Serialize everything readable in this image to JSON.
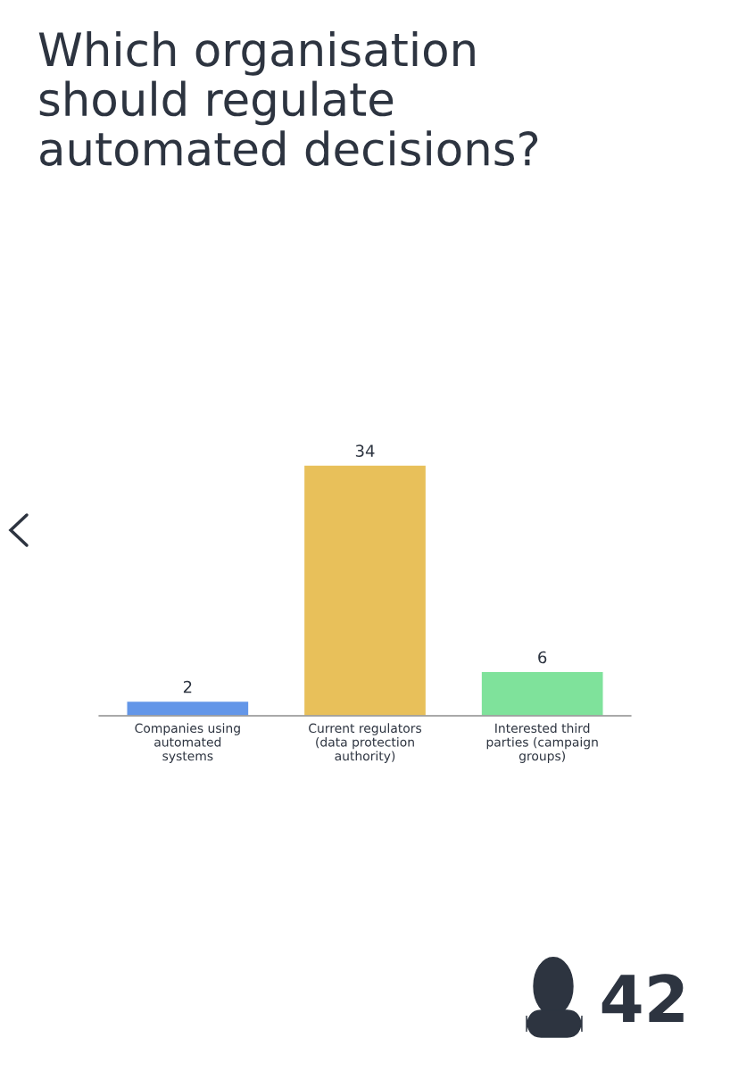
{
  "chart_data": {
    "type": "bar",
    "title": "Which organisation\nshould regulate\nautomated decisions?",
    "categories": [
      "Companies using\nautomated\nsystems",
      "Current regulators\n(data protection\nauthority)",
      "Interested third\nparties (campaign\ngroups)"
    ],
    "values": [
      2,
      34,
      6
    ],
    "colors": [
      "#6396e8",
      "#e8c05a",
      "#7fe29b"
    ],
    "data_labels": true,
    "grid": false,
    "legend": false,
    "annotations": [
      "42"
    ]
  }
}
